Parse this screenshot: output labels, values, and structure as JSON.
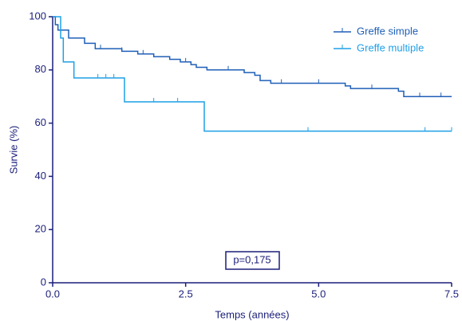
{
  "chart_data": {
    "type": "step",
    "x_label": "Temps (années)",
    "y_label": "Survie (%)",
    "annotation": "p=0,175",
    "xlim": [
      0,
      7.5
    ],
    "ylim": [
      0,
      100
    ],
    "xticks": [
      {
        "value": 0,
        "label": "0.0"
      },
      2.5,
      {
        "value": 5,
        "label": "5.0"
      },
      7.5
    ],
    "yticks": [
      0,
      20,
      40,
      60,
      80,
      100
    ],
    "axis_color": "#1b1f7a",
    "series": [
      {
        "name": "Greffe simple",
        "color": "#1f5fb8",
        "x": [
          0,
          0.05,
          0.1,
          0.3,
          0.6,
          0.8,
          1.3,
          1.6,
          1.9,
          2.2,
          2.4,
          2.6,
          2.7,
          2.9,
          3.6,
          3.8,
          3.9,
          4.1,
          5.5,
          5.6,
          6.5,
          6.6,
          7.5
        ],
        "values": [
          100,
          97,
          95,
          92,
          90,
          88,
          87,
          86,
          85,
          84,
          83,
          82,
          81,
          80,
          79,
          78,
          76,
          75,
          74,
          73,
          72,
          70,
          70
        ],
        "censored": [
          0.9,
          1.3,
          1.7,
          2.5,
          3.3,
          4.3,
          5.0,
          6.0,
          6.9,
          7.3
        ]
      },
      {
        "name": "Greffe multiple",
        "color": "#1ea0e6",
        "x": [
          0,
          0.15,
          0.2,
          0.4,
          1.35,
          2.85,
          7.5
        ],
        "values": [
          100,
          92,
          83,
          77,
          68,
          57,
          57
        ],
        "censored": [
          0.85,
          1.0,
          1.15,
          1.9,
          2.35,
          4.8,
          7.0,
          7.5
        ]
      }
    ]
  }
}
